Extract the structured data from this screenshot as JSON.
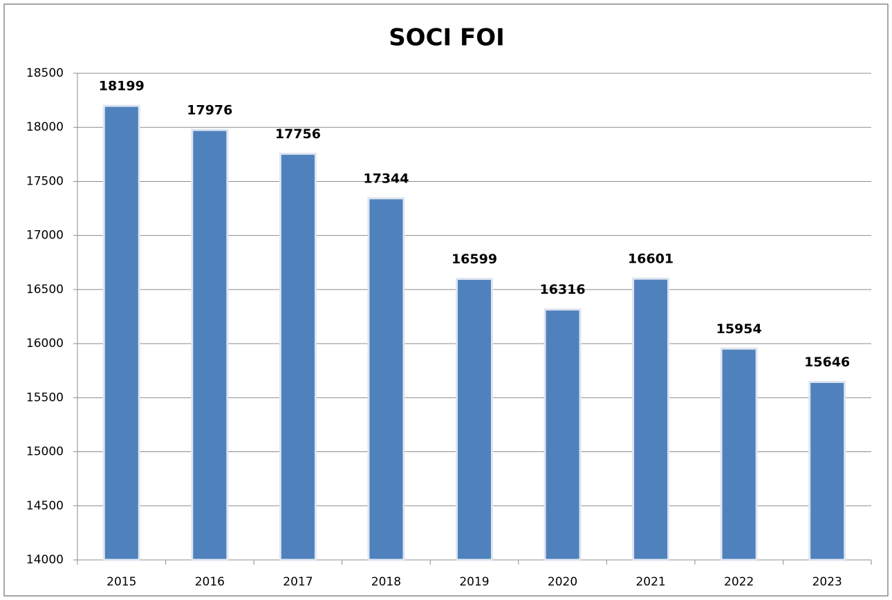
{
  "chart_data": {
    "type": "bar",
    "title": "SOCI FOI",
    "categories": [
      "2015",
      "2016",
      "2017",
      "2018",
      "2019",
      "2020",
      "2021",
      "2022",
      "2023"
    ],
    "values": [
      18199,
      17976,
      17756,
      17344,
      16599,
      16316,
      16601,
      15954,
      15646
    ],
    "color": "#4f81bd",
    "ylim": [
      14000,
      18500
    ],
    "yticks": [
      14000,
      14500,
      15000,
      15500,
      16000,
      16500,
      17000,
      17500,
      18000,
      18500
    ],
    "grid": true
  }
}
